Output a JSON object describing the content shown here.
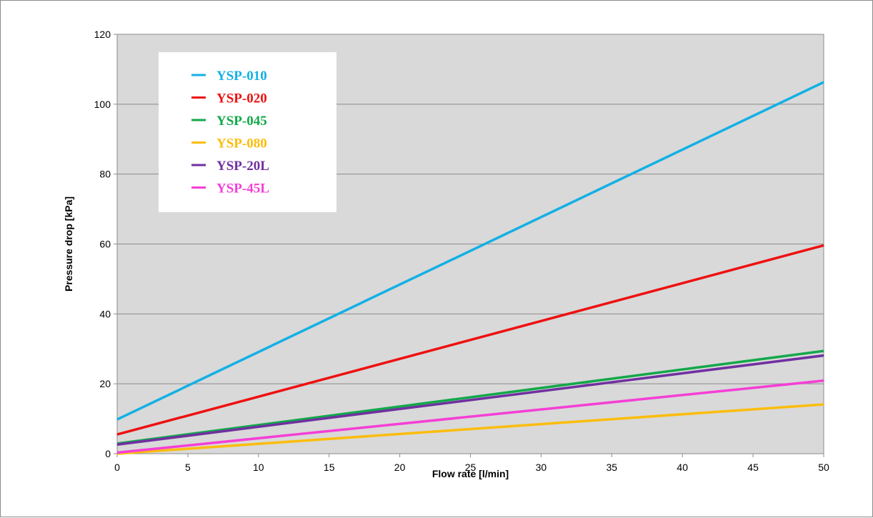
{
  "chart_data": {
    "type": "line",
    "title": "",
    "xlabel": "Flow rate [l/min]",
    "ylabel": "Pressure drop [kPa]",
    "xlim": [
      0,
      50
    ],
    "ylim": [
      0,
      120
    ],
    "x_ticks": [
      0,
      5,
      10,
      15,
      20,
      25,
      30,
      35,
      40,
      45,
      50
    ],
    "y_ticks": [
      0,
      20,
      40,
      60,
      80,
      100,
      120
    ],
    "grid": "horizontal",
    "plot_background": "#d9d9d9",
    "legend_position": "top-left",
    "series": [
      {
        "name": "YSP-010",
        "color": "#13b0e5",
        "x": [
          0,
          50
        ],
        "y": [
          9.8,
          106.3
        ]
      },
      {
        "name": "YSP-020",
        "color": "#ee1111",
        "x": [
          0,
          50
        ],
        "y": [
          5.5,
          59.6
        ]
      },
      {
        "name": "YSP-045",
        "color": "#13a84a",
        "x": [
          0,
          50
        ],
        "y": [
          2.9,
          29.4
        ]
      },
      {
        "name": "YSP-080",
        "color": "#fbbd0d",
        "x": [
          0,
          50
        ],
        "y": [
          0.0,
          14.1
        ]
      },
      {
        "name": "YSP-20L",
        "color": "#7030a0",
        "x": [
          0,
          50
        ],
        "y": [
          2.6,
          28.1
        ]
      },
      {
        "name": "YSP-45L",
        "color": "#f53fd6",
        "x": [
          0,
          50
        ],
        "y": [
          0.3,
          20.9
        ]
      }
    ]
  }
}
